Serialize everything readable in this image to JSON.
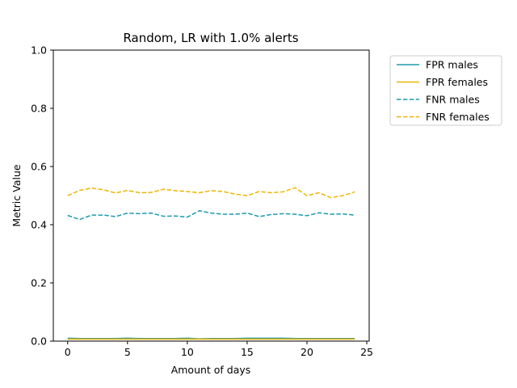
{
  "chart_data": {
    "type": "line",
    "title": "Random, LR with 1.0% alerts",
    "xlabel": "Amount of days",
    "ylabel": "Metric Value",
    "xlim": [
      -1.2,
      25.2
    ],
    "ylim": [
      0,
      1.0
    ],
    "xticks": [
      0,
      5,
      10,
      15,
      20,
      25
    ],
    "yticks": [
      0.0,
      0.2,
      0.4,
      0.6,
      0.8,
      1.0
    ],
    "grid": false,
    "legend_position": "outside-top-right",
    "x": [
      0,
      1,
      2,
      3,
      4,
      5,
      6,
      7,
      8,
      9,
      10,
      11,
      12,
      13,
      14,
      15,
      16,
      17,
      18,
      19,
      20,
      21,
      22,
      23,
      24
    ],
    "series": [
      {
        "name": "FPR males",
        "color": "#1f9ab0",
        "dash": "solid",
        "values": [
          0.01,
          0.009,
          0.009,
          0.009,
          0.009,
          0.01,
          0.009,
          0.009,
          0.009,
          0.009,
          0.01,
          0.008,
          0.009,
          0.009,
          0.009,
          0.01,
          0.01,
          0.01,
          0.01,
          0.009,
          0.009,
          0.009,
          0.009,
          0.009,
          0.009
        ]
      },
      {
        "name": "FPR females",
        "color": "#f0b400",
        "dash": "solid",
        "values": [
          0.007,
          0.007,
          0.007,
          0.007,
          0.007,
          0.007,
          0.007,
          0.007,
          0.007,
          0.007,
          0.007,
          0.007,
          0.007,
          0.007,
          0.007,
          0.007,
          0.007,
          0.007,
          0.007,
          0.007,
          0.007,
          0.007,
          0.007,
          0.007,
          0.007
        ]
      },
      {
        "name": "FNR males",
        "color": "#1f9ab0",
        "dash": "dashed",
        "values": [
          0.432,
          0.418,
          0.433,
          0.433,
          0.428,
          0.44,
          0.438,
          0.44,
          0.429,
          0.43,
          0.426,
          0.448,
          0.44,
          0.436,
          0.436,
          0.44,
          0.428,
          0.435,
          0.438,
          0.436,
          0.431,
          0.441,
          0.436,
          0.437,
          0.433
        ]
      },
      {
        "name": "FNR females",
        "color": "#f0b400",
        "dash": "dashed",
        "values": [
          0.5,
          0.518,
          0.526,
          0.52,
          0.509,
          0.518,
          0.51,
          0.511,
          0.522,
          0.517,
          0.514,
          0.51,
          0.517,
          0.514,
          0.505,
          0.5,
          0.514,
          0.51,
          0.513,
          0.527,
          0.5,
          0.51,
          0.493,
          0.5,
          0.513
        ]
      }
    ]
  }
}
